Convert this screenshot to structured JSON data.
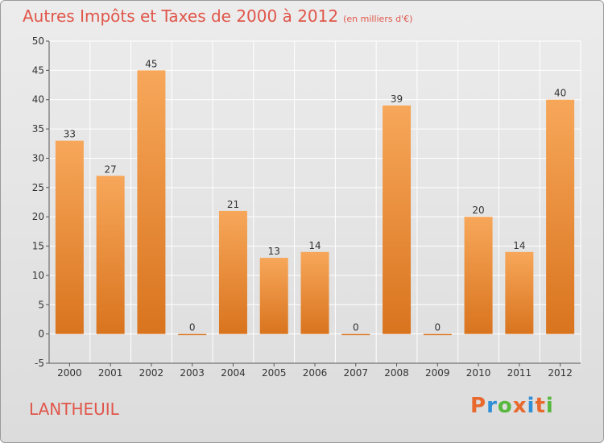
{
  "title": "Autres Impôts et Taxes de 2000 à 2012",
  "subtitle": "(en milliers d'€)",
  "commune": "LANTHEUIL",
  "logo": {
    "text": "Proxiti",
    "letter_colors": [
      "#e8692e",
      "#2f8fd6",
      "#57b83d",
      "#e8692e",
      "#2f8fd6",
      "#e8692e",
      "#57b83d"
    ]
  },
  "colors": {
    "title": "#e0564a",
    "bar_top": "#f7a75a",
    "bar_bottom": "#d9741e",
    "grid": "#ffffff",
    "axis": "#555555"
  },
  "chart_data": {
    "type": "bar",
    "title": "Autres Impôts et Taxes de 2000 à 2012",
    "subtitle": "(en milliers d'€)",
    "categories": [
      "2000",
      "2001",
      "2002",
      "2003",
      "2004",
      "2005",
      "2006",
      "2007",
      "2008",
      "2009",
      "2010",
      "2011",
      "2012"
    ],
    "values": [
      33,
      27,
      45,
      0,
      21,
      13,
      14,
      0,
      39,
      0,
      20,
      14,
      40
    ],
    "ylim": [
      -5,
      50
    ],
    "yticks": [
      -5,
      0,
      5,
      10,
      15,
      20,
      25,
      30,
      35,
      40,
      45,
      50
    ],
    "grid": true,
    "data_labels": true
  }
}
